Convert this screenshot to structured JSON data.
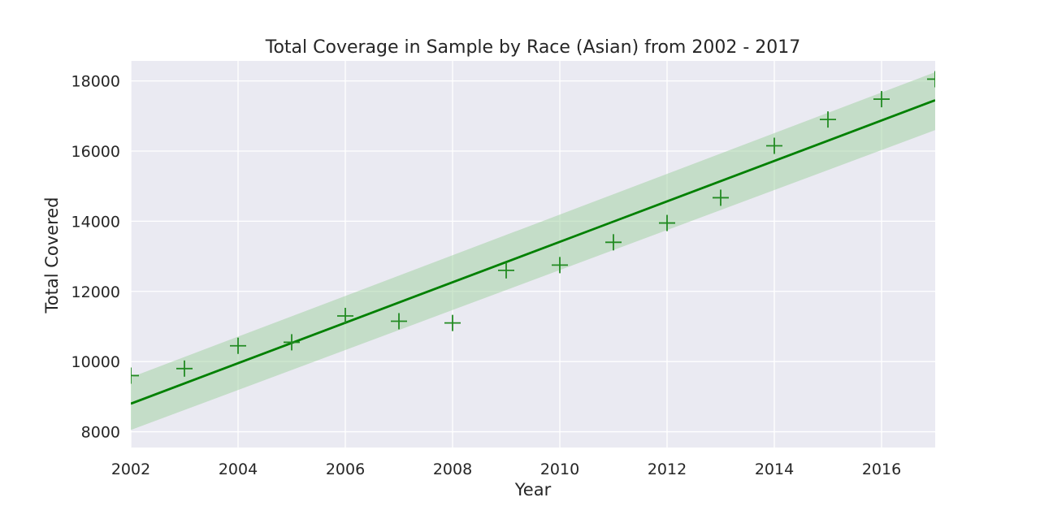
{
  "chart_data": {
    "type": "scatter",
    "title": "Total Coverage in Sample by Race (Asian) from 2002 - 2017",
    "xlabel": "Year",
    "ylabel": "Total Covered",
    "xlim": [
      2002,
      2017
    ],
    "ylim": [
      7550,
      18570
    ],
    "x_ticks": [
      "2002",
      "2004",
      "2006",
      "2008",
      "2010",
      "2012",
      "2014",
      "2016"
    ],
    "y_ticks": [
      "8000",
      "10000",
      "12000",
      "14000",
      "16000",
      "18000"
    ],
    "grid": true,
    "marker": "+",
    "colors": {
      "points": "#228b22",
      "fit_line": "#008000",
      "band": "#9ed09e",
      "plot_bg": "#eaeaf2",
      "grid": "#ffffff"
    },
    "series": [
      {
        "x": [
          2002,
          2003,
          2004,
          2005,
          2006,
          2007,
          2008,
          2009,
          2010,
          2011,
          2012,
          2013,
          2014,
          2015,
          2016,
          2017
        ],
        "y": [
          9600,
          9800,
          10450,
          10550,
          11300,
          11150,
          11100,
          12600,
          12750,
          13400,
          13950,
          14670,
          16150,
          16900,
          17480,
          18050
        ]
      }
    ],
    "regression": {
      "x": [
        2002,
        2017
      ],
      "y": [
        8800,
        17450
      ],
      "ci_lower": [
        8050,
        16600
      ],
      "ci_upper": [
        9550,
        18250
      ]
    }
  }
}
